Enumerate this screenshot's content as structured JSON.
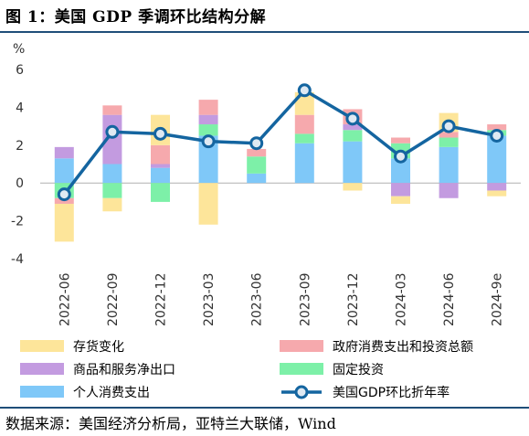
{
  "header": {
    "title": "图 1：美国 GDP 季调环比结构分解"
  },
  "footer": {
    "source": "数据来源：美国经济分析局，亚特兰大联储，Wind"
  },
  "chart_data": {
    "type": "bar",
    "stacked": true,
    "title": "",
    "ylabel": "%",
    "ylim": [
      -4,
      6
    ],
    "yticks": [
      -4,
      -2,
      0,
      2,
      4,
      6
    ],
    "categories": [
      "2022-06",
      "2022-09",
      "2022-12",
      "2023-03",
      "2023-06",
      "2023-09",
      "2023-12",
      "2024-03",
      "2024-06",
      "2024-9e"
    ],
    "series": [
      {
        "name": "个人消费支出",
        "color": "#7fc8f8",
        "values": [
          1.3,
          1.0,
          0.8,
          2.5,
          0.5,
          2.1,
          2.2,
          1.3,
          1.9,
          2.5
        ]
      },
      {
        "name": "固定投资",
        "color": "#7df0a8",
        "values": [
          -0.8,
          -0.8,
          -1.0,
          0.6,
          0.9,
          0.5,
          0.6,
          0.8,
          0.5,
          0.3
        ]
      },
      {
        "name": "商品和服务净出口",
        "color": "#c39be0",
        "values": [
          0.6,
          2.6,
          0.2,
          0.5,
          0.0,
          0.0,
          0.3,
          -0.7,
          -0.8,
          -0.4
        ]
      },
      {
        "name": "政府消费支出和投资总额",
        "color": "#f6a9ad",
        "values": [
          -0.3,
          0.5,
          1.0,
          0.8,
          0.4,
          1.0,
          0.8,
          0.3,
          0.3,
          0.3
        ]
      },
      {
        "name": "存货变化",
        "color": "#fde59a",
        "values": [
          -2.0,
          -0.7,
          1.6,
          -2.2,
          0.0,
          1.2,
          -0.4,
          -0.4,
          1.0,
          -0.3
        ]
      },
      {
        "name": "美国GDP环比折年率",
        "type": "line",
        "color": "#1465a0",
        "values": [
          -0.6,
          2.7,
          2.6,
          2.2,
          2.1,
          4.9,
          3.4,
          1.4,
          3.0,
          2.5
        ]
      }
    ],
    "legend_position": "bottom",
    "grid": false
  }
}
